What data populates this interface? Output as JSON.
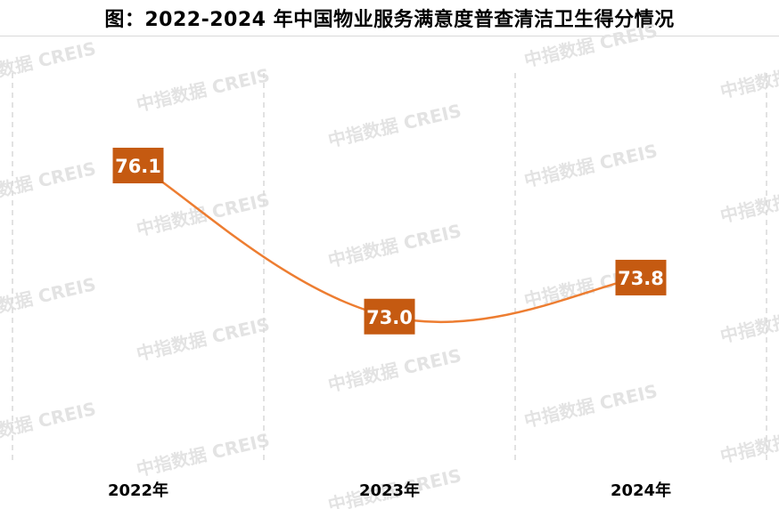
{
  "chart_data": {
    "type": "line",
    "title": "图：2022-2024 年中国物业服务满意度普查清洁卫生得分情况",
    "categories": [
      "2022年",
      "2023年",
      "2024年"
    ],
    "series": [
      {
        "values": [
          76.1,
          73.0,
          73.8
        ]
      }
    ],
    "data_labels": [
      "76.1",
      "73.0",
      "73.8"
    ],
    "ylim": [
      70,
      78
    ],
    "grid": "vertical dashed lines between categories",
    "colors": {
      "line": "#ed7d31",
      "label_box": "#c55a11",
      "label_text": "#ffffff",
      "grid": "#d9d9d9"
    }
  },
  "watermark": "中指数据 CREIS"
}
